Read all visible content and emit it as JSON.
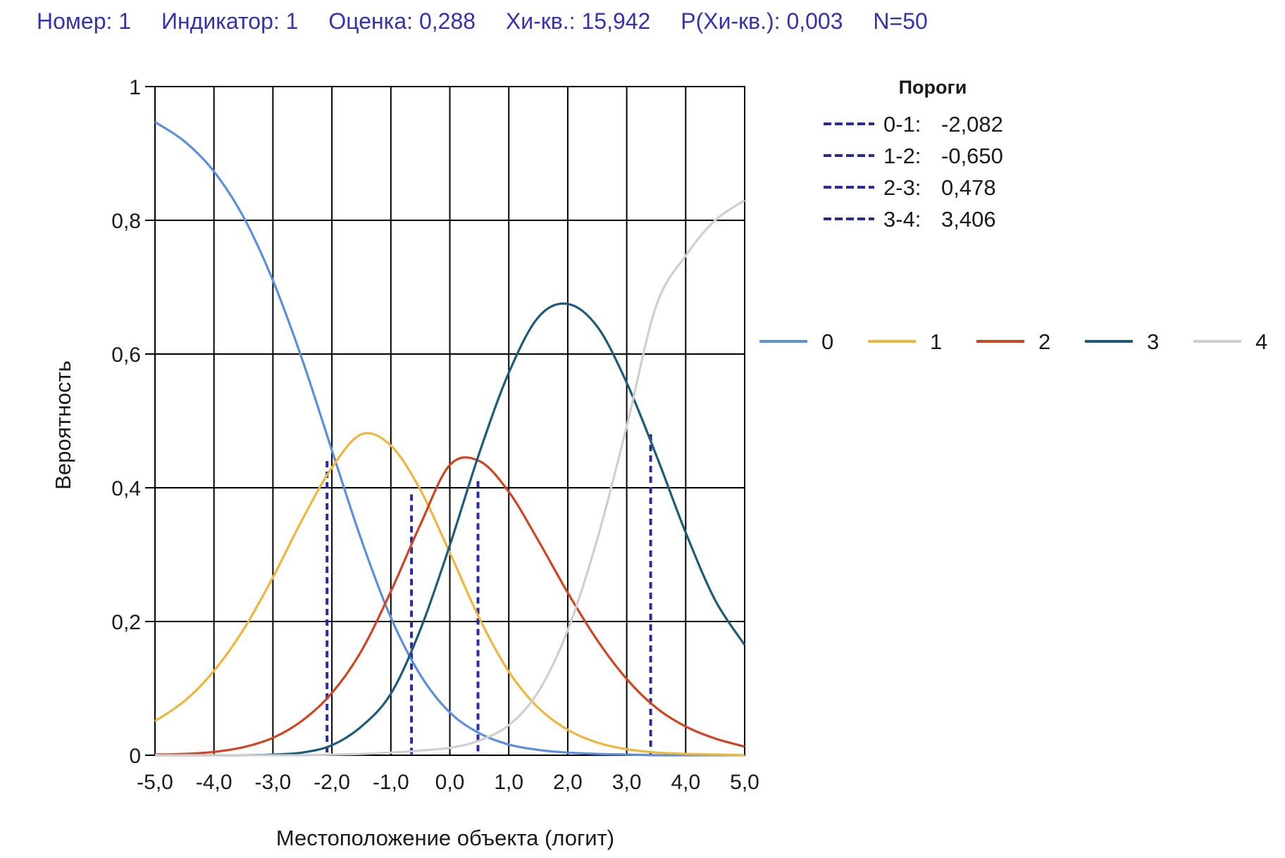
{
  "header": {
    "number": "Номер: 1",
    "indicator": "Индикатор: 1",
    "estimate": "Оценка: 0,288",
    "chi_sq": "Хи-кв.: 15,942",
    "p_chi_sq": "P(Хи-кв.): 0,003",
    "n": "N=50"
  },
  "chart_data": {
    "type": "line",
    "xlabel": "Местоположение объекта (логит)",
    "ylabel": "Вероятность",
    "xlim": [
      -5,
      5
    ],
    "ylim": [
      0,
      1
    ],
    "grid": true,
    "x_ticks": [
      -5,
      -4,
      -3,
      -2,
      -1,
      0,
      1,
      2,
      3,
      4,
      5
    ],
    "x_tick_labels": [
      "-5,0",
      "-4,0",
      "-3,0",
      "-2,0",
      "-1,0",
      "0,0",
      "1,0",
      "2,0",
      "3,0",
      "4,0",
      "5,0"
    ],
    "y_ticks": [
      0,
      0.2,
      0.4,
      0.6,
      0.8,
      1
    ],
    "y_tick_labels": [
      "0",
      "0,2",
      "0,4",
      "0,6",
      "0,8",
      "1"
    ],
    "x": [
      -5,
      -4.5,
      -4,
      -3.5,
      -3,
      -2.5,
      -2,
      -1.5,
      -1,
      -0.5,
      0,
      0.5,
      1,
      1.5,
      2,
      2.5,
      3,
      3.5,
      4,
      4.5,
      5
    ],
    "series": [
      {
        "name": "0",
        "color": "#5a8fe0",
        "values": [
          0.947,
          0.918,
          0.873,
          0.805,
          0.71,
          0.591,
          0.456,
          0.322,
          0.206,
          0.12,
          0.064,
          0.033,
          0.016,
          0.008,
          0.004,
          0.002,
          0.001,
          0.0,
          0.0,
          0.0,
          0.0
        ]
      },
      {
        "name": "1",
        "color": "#f0b63a",
        "values": [
          0.051,
          0.081,
          0.126,
          0.188,
          0.266,
          0.353,
          0.43,
          0.48,
          0.463,
          0.397,
          0.303,
          0.205,
          0.125,
          0.071,
          0.038,
          0.019,
          0.009,
          0.004,
          0.002,
          0.001,
          0.0
        ]
      },
      {
        "name": "2",
        "color": "#d1441f",
        "values": [
          0.001,
          0.002,
          0.005,
          0.012,
          0.026,
          0.052,
          0.093,
          0.156,
          0.245,
          0.345,
          0.434,
          0.44,
          0.394,
          0.321,
          0.243,
          0.172,
          0.114,
          0.071,
          0.043,
          0.025,
          0.013
        ]
      },
      {
        "name": "3",
        "color": "#1b5b7e",
        "values": [
          0.0,
          0.0,
          0.0,
          0.0,
          0.001,
          0.004,
          0.015,
          0.043,
          0.092,
          0.188,
          0.314,
          0.452,
          0.572,
          0.655,
          0.675,
          0.641,
          0.557,
          0.449,
          0.333,
          0.232,
          0.165
        ]
      },
      {
        "name": "4",
        "color": "#cfcfcf",
        "values": [
          0.0,
          0.0,
          0.0,
          0.0,
          0.0,
          0.0,
          0.001,
          0.002,
          0.004,
          0.007,
          0.011,
          0.022,
          0.045,
          0.095,
          0.187,
          0.323,
          0.492,
          0.672,
          0.747,
          0.8,
          0.83
        ]
      }
    ],
    "legend_position": "right",
    "thresholds_title": "Пороги",
    "thresholds": [
      {
        "label": "0-1:",
        "value": "-2,082",
        "x": -2.082,
        "y": 0.44
      },
      {
        "label": "1-2:",
        "value": "-0,650",
        "x": -0.65,
        "y": 0.39
      },
      {
        "label": "2-3:",
        "value": "0,478",
        "x": 0.478,
        "y": 0.41
      },
      {
        "label": "3-4:",
        "value": "3,406",
        "x": 3.406,
        "y": 0.48
      }
    ],
    "threshold_color": "#2a2aa0"
  }
}
